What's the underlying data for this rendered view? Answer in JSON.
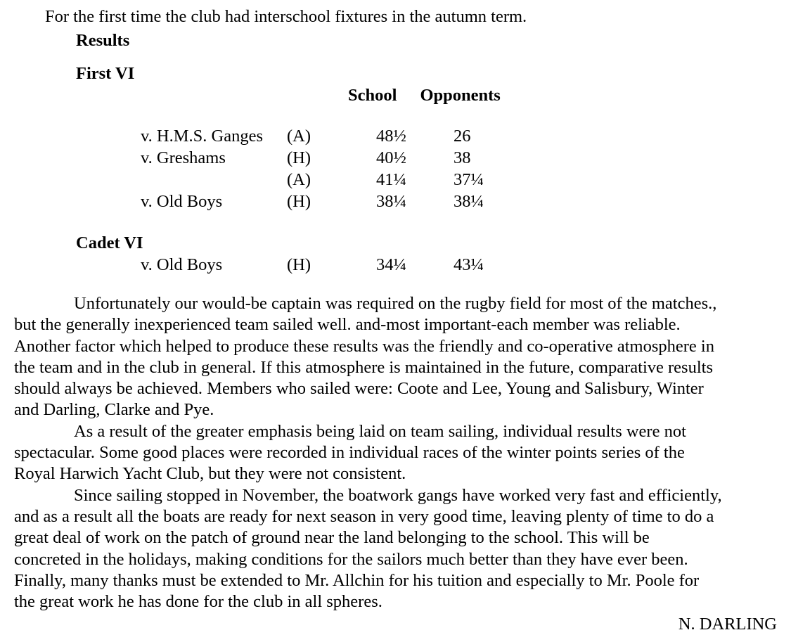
{
  "document": {
    "intro": "For the first time the club had interschool fixtures in the autumn term.",
    "results_heading": "Results",
    "table_header": {
      "school": "School",
      "opponents": "Opponents"
    },
    "sections": [
      {
        "title": "First VI",
        "rows": [
          {
            "opponent": "v. H.M.S. Ganges",
            "venue": "(A)",
            "school": "48½",
            "opponents": "26"
          },
          {
            "opponent": "v. Greshams",
            "venue": "(H)",
            "school": "40½",
            "opponents": "38"
          },
          {
            "opponent": "",
            "venue": "(A)",
            "school": "41¼",
            "opponents": "37¼"
          },
          {
            "opponent": "v. Old Boys",
            "venue": "(H)",
            "school": "38¼",
            "opponents": "38¼"
          }
        ]
      },
      {
        "title": "Cadet VI",
        "rows": [
          {
            "opponent": "v. Old Boys",
            "venue": "(H)",
            "school": "34¼",
            "opponents": "43¼"
          }
        ]
      }
    ],
    "paragraphs": [
      {
        "lines": [
          "Unfortunately our would-be captain was required on the rugby field for most of the matches.,",
          "but the generally inexperienced team sailed well. and-most important-each member was reliable.",
          "Another factor which helped to produce these results was the friendly and co-operative atmosphere in",
          "the team and in the club in general. If this atmosphere is maintained in the future, comparative results",
          "should always be achieved. Members who sailed were: Coote and Lee, Young and Salisbury, Winter",
          "and Darling, Clarke and Pye."
        ]
      },
      {
        "lines": [
          "As a result of the greater emphasis being laid on team sailing, individual results were not",
          "spectacular. Some good places were recorded in individual races of the winter points series of the",
          "Royal Harwich Yacht Club, but they were not consistent."
        ]
      },
      {
        "lines": [
          "Since sailing stopped in November, the boatwork gangs have worked very fast and efficiently,",
          "and as a result all the boats are ready for next season in very good time, leaving plenty of time to do a",
          "great deal of work on the patch of ground near the land belonging to the school. This will be",
          "concreted in the holidays, making conditions for the sailors much better than they have ever been.",
          "Finally, many thanks must be extended to Mr. Allchin for his tuition and especially to Mr. Poole for",
          "the great work he has done for the club in all spheres."
        ]
      }
    ],
    "signature": "N. DARLING"
  }
}
